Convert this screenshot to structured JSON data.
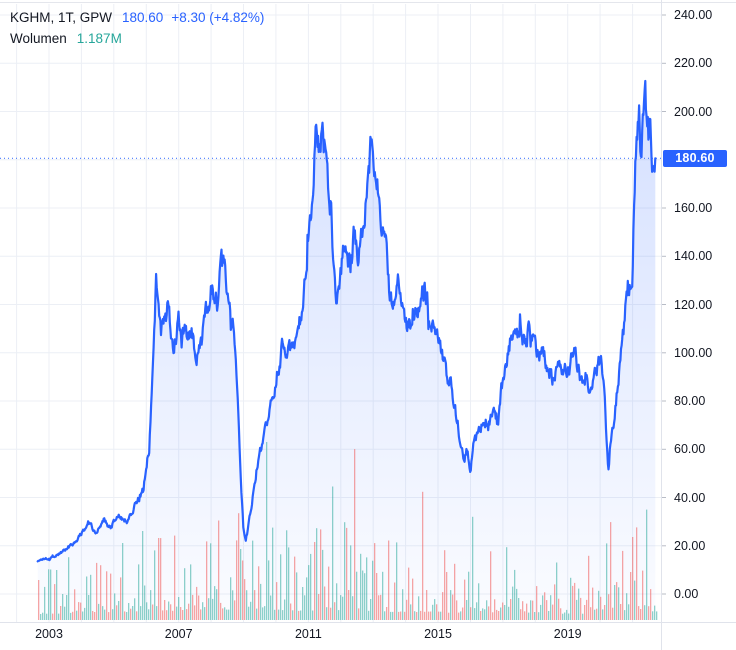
{
  "header": {
    "symbol": {
      "title": "KGHM, 1T, GPW",
      "price": "180.60",
      "change": "+8.30 (+4.82%)"
    },
    "volume": {
      "label": "Wolumen",
      "value": "1.187M"
    }
  },
  "price_axis": {
    "badge": "180.60",
    "ticks": [
      {
        "text": "240.00",
        "value": 240
      },
      {
        "text": "220.00",
        "value": 220
      },
      {
        "text": "200.00",
        "value": 200
      },
      {
        "text": "160.00",
        "value": 160
      },
      {
        "text": "140.00",
        "value": 140
      },
      {
        "text": "120.00",
        "value": 120
      },
      {
        "text": "100.00",
        "value": 100
      },
      {
        "text": "80.00",
        "value": 80
      },
      {
        "text": "60.00",
        "value": 60
      },
      {
        "text": "40.00",
        "value": 40
      },
      {
        "text": "20.00",
        "value": 20
      },
      {
        "text": "0.00",
        "value": 0
      }
    ]
  },
  "time_axis": {
    "ticks": [
      {
        "text": "2003",
        "year": 2003
      },
      {
        "text": "2007",
        "year": 2007
      },
      {
        "text": "2011",
        "year": 2011
      },
      {
        "text": "2015",
        "year": 2015
      },
      {
        "text": "2019",
        "year": 2019
      }
    ]
  },
  "colors": {
    "accent_blue": "#2962ff",
    "teal": "#26a69a",
    "grid": "#eceff5",
    "axis_text": "#131722",
    "separator": "#e0e3eb",
    "vol_up": "rgba(38,166,154,0.52)",
    "vol_down": "rgba(239,83,80,0.52)",
    "area_top": "rgba(41,98,255,0.20)",
    "area_bottom": "rgba(41,98,255,0.02)",
    "badge_bg": "#2962ff",
    "badge_text": "#ffffff",
    "tick_mark": "#b8bcc6"
  },
  "chart_data": {
    "type": "area",
    "title": "KGHM weekly (1T) price, GPW",
    "x_unit": "year",
    "x_range": [
      2002.65,
      2021.7
    ],
    "ylim": [
      0,
      240
    ],
    "y_ticks": [
      0,
      20,
      40,
      60,
      80,
      100,
      120,
      140,
      160,
      180,
      200,
      220,
      240
    ],
    "grid": true,
    "last_price": 180.6,
    "last_change": 8.3,
    "last_change_pct": 4.82,
    "seed": 1337,
    "series": [
      {
        "name": "KGHM close",
        "keypoints": [
          [
            2002.65,
            13.5
          ],
          [
            2002.8,
            14.5
          ],
          [
            2003.0,
            15
          ],
          [
            2003.3,
            16.5
          ],
          [
            2003.6,
            19.5
          ],
          [
            2003.9,
            23
          ],
          [
            2004.2,
            30
          ],
          [
            2004.45,
            26
          ],
          [
            2004.7,
            30.5
          ],
          [
            2004.9,
            27
          ],
          [
            2005.15,
            33
          ],
          [
            2005.4,
            30
          ],
          [
            2005.65,
            37
          ],
          [
            2005.9,
            43
          ],
          [
            2006.1,
            62
          ],
          [
            2006.3,
            130
          ],
          [
            2006.45,
            108
          ],
          [
            2006.65,
            118
          ],
          [
            2006.85,
            104
          ],
          [
            2007.0,
            113
          ],
          [
            2007.2,
            107
          ],
          [
            2007.4,
            110
          ],
          [
            2007.55,
            96
          ],
          [
            2007.7,
            103
          ],
          [
            2007.9,
            121
          ],
          [
            2008.05,
            128
          ],
          [
            2008.2,
            121
          ],
          [
            2008.3,
            140
          ],
          [
            2008.45,
            131
          ],
          [
            2008.6,
            120
          ],
          [
            2008.72,
            108
          ],
          [
            2008.82,
            80
          ],
          [
            2008.92,
            45
          ],
          [
            2009.0,
            26
          ],
          [
            2009.07,
            22
          ],
          [
            2009.15,
            28
          ],
          [
            2009.3,
            42
          ],
          [
            2009.45,
            55
          ],
          [
            2009.6,
            62
          ],
          [
            2009.75,
            72
          ],
          [
            2009.9,
            83
          ],
          [
            2010.05,
            92
          ],
          [
            2010.2,
            103
          ],
          [
            2010.35,
            98
          ],
          [
            2010.5,
            103
          ],
          [
            2010.65,
            108
          ],
          [
            2010.8,
            116
          ],
          [
            2010.95,
            135
          ],
          [
            2011.1,
            163
          ],
          [
            2011.25,
            196
          ],
          [
            2011.35,
            187
          ],
          [
            2011.45,
            193
          ],
          [
            2011.6,
            168
          ],
          [
            2011.72,
            157
          ],
          [
            2011.85,
            126
          ],
          [
            2012.0,
            134
          ],
          [
            2012.13,
            146
          ],
          [
            2012.3,
            136
          ],
          [
            2012.42,
            150
          ],
          [
            2012.52,
            141
          ],
          [
            2012.65,
            147
          ],
          [
            2012.78,
            162
          ],
          [
            2012.94,
            191
          ],
          [
            2013.05,
            179
          ],
          [
            2013.15,
            172
          ],
          [
            2013.25,
            151
          ],
          [
            2013.38,
            143
          ],
          [
            2013.5,
            127
          ],
          [
            2013.62,
            122
          ],
          [
            2013.75,
            130
          ],
          [
            2013.88,
            118
          ],
          [
            2014.0,
            114
          ],
          [
            2014.15,
            110
          ],
          [
            2014.3,
            116
          ],
          [
            2014.45,
            123
          ],
          [
            2014.6,
            127
          ],
          [
            2014.75,
            117
          ],
          [
            2014.9,
            109
          ],
          [
            2015.05,
            104
          ],
          [
            2015.2,
            96
          ],
          [
            2015.35,
            88
          ],
          [
            2015.5,
            80
          ],
          [
            2015.65,
            67
          ],
          [
            2015.8,
            56
          ],
          [
            2015.9,
            60
          ],
          [
            2016.0,
            52
          ],
          [
            2016.1,
            63
          ],
          [
            2016.25,
            68
          ],
          [
            2016.4,
            74
          ],
          [
            2016.55,
            70
          ],
          [
            2016.7,
            76
          ],
          [
            2016.85,
            72
          ],
          [
            2017.0,
            89
          ],
          [
            2017.15,
            101
          ],
          [
            2017.3,
            109
          ],
          [
            2017.42,
            105
          ],
          [
            2017.55,
            112
          ],
          [
            2017.67,
            103
          ],
          [
            2017.8,
            109
          ],
          [
            2017.95,
            105
          ],
          [
            2018.1,
            97
          ],
          [
            2018.25,
            99
          ],
          [
            2018.4,
            93
          ],
          [
            2018.55,
            89
          ],
          [
            2018.7,
            95
          ],
          [
            2018.85,
            91
          ],
          [
            2019.0,
            93
          ],
          [
            2019.1,
            99
          ],
          [
            2019.2,
            103
          ],
          [
            2019.32,
            95
          ],
          [
            2019.45,
            89
          ],
          [
            2019.57,
            91
          ],
          [
            2019.68,
            85
          ],
          [
            2019.8,
            89
          ],
          [
            2019.95,
            97
          ],
          [
            2020.05,
            95
          ],
          [
            2020.15,
            80
          ],
          [
            2020.25,
            50
          ],
          [
            2020.32,
            64
          ],
          [
            2020.42,
            72
          ],
          [
            2020.52,
            85
          ],
          [
            2020.62,
            97
          ],
          [
            2020.72,
            109
          ],
          [
            2020.82,
            126
          ],
          [
            2020.92,
            130
          ],
          [
            2021.0,
            134
          ],
          [
            2021.07,
            172
          ],
          [
            2021.13,
            192
          ],
          [
            2021.2,
            201
          ],
          [
            2021.26,
            184
          ],
          [
            2021.31,
            197
          ],
          [
            2021.37,
            220
          ],
          [
            2021.43,
            201
          ],
          [
            2021.5,
            188
          ],
          [
            2021.55,
            194
          ],
          [
            2021.6,
            180
          ],
          [
            2021.65,
            170
          ],
          [
            2021.7,
            180.6
          ]
        ]
      }
    ],
    "volume": {
      "name": "Wolumen",
      "last": "1.187M",
      "seed": 777,
      "profile": [
        [
          2002.65,
          0.32
        ],
        [
          2004.0,
          0.4
        ],
        [
          2005.5,
          0.45
        ],
        [
          2006.3,
          0.55
        ],
        [
          2007.0,
          0.5
        ],
        [
          2008.5,
          0.58
        ],
        [
          2009.0,
          0.62
        ],
        [
          2009.7,
          0.6
        ],
        [
          2010.5,
          0.5
        ],
        [
          2011.7,
          0.55
        ],
        [
          2012.4,
          0.55
        ],
        [
          2013.5,
          0.45
        ],
        [
          2014.5,
          0.45
        ],
        [
          2015.5,
          0.4
        ],
        [
          2016.2,
          0.45
        ],
        [
          2017.5,
          0.4
        ],
        [
          2018.5,
          0.35
        ],
        [
          2019.5,
          0.35
        ],
        [
          2020.3,
          0.5
        ],
        [
          2021.0,
          0.52
        ],
        [
          2021.7,
          0.48
        ]
      ],
      "spikes": [
        [
          2005.9,
          0.5,
          "up"
        ],
        [
          2009.7,
          1.0,
          "up"
        ],
        [
          2011.75,
          0.75,
          "up"
        ],
        [
          2008.85,
          0.6,
          "down"
        ],
        [
          2012.42,
          0.96,
          "down"
        ],
        [
          2014.55,
          0.72,
          "down"
        ],
        [
          2016.05,
          0.58,
          "up"
        ],
        [
          2020.3,
          0.55,
          "down"
        ],
        [
          2021.1,
          0.52,
          "down"
        ],
        [
          2021.45,
          0.62,
          "up"
        ]
      ]
    }
  }
}
